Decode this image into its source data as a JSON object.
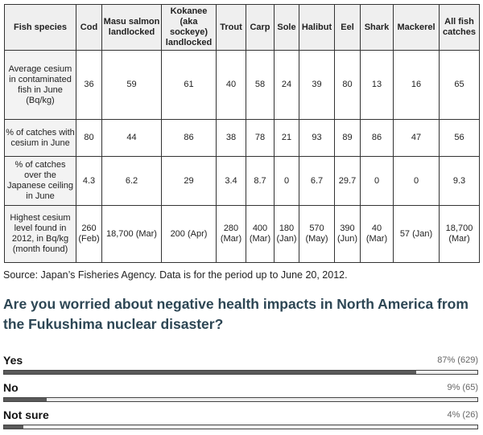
{
  "table": {
    "headers": [
      "Fish species",
      "Cod",
      "Masu salmon landlocked",
      "Kokanee (aka sockeye) landlocked",
      "Trout",
      "Carp",
      "Sole",
      "Halibut",
      "Eel",
      "Shark",
      "Mackerel",
      "All fish catches"
    ],
    "rows": [
      {
        "label": "Average cesium in contaminated fish in June (Bq/kg)",
        "cells": [
          "36",
          "59",
          "61",
          "40",
          "58",
          "24",
          "39",
          "80",
          "13",
          "16",
          "65"
        ]
      },
      {
        "label": "% of catches with cesium in June",
        "cells": [
          "80",
          "44",
          "86",
          "38",
          "78",
          "21",
          "93",
          "89",
          "86",
          "47",
          "56"
        ]
      },
      {
        "label": "% of catches over the Japanese ceiling in June",
        "cells": [
          "4.3",
          "6.2",
          "29",
          "3.4",
          "8.7",
          "0",
          "6.7",
          "29.7",
          "0",
          "0",
          "9.3"
        ]
      },
      {
        "label": "Highest cesium level found in 2012, in Bq/kg (month found)",
        "cells": [
          "260 (Feb)",
          "18,700 (Mar)",
          "200 (Apr)",
          "280 (Mar)",
          "400 (Mar)",
          "180 (Jan)",
          "570 (May)",
          "390 (Jun)",
          "40 (Mar)",
          "57 (Jan)",
          "18,700 (Mar)"
        ]
      }
    ]
  },
  "source": "Source: Japan’s Fisheries Agency. Data is for the period up to June 20, 2012.",
  "poll": {
    "question": "Are you worried about negative health impacts in North America from the Fukushima nuclear disaster?",
    "options": [
      {
        "label": "Yes",
        "result": "87% (629)",
        "percent": 87
      },
      {
        "label": "No",
        "result": "9% (65)",
        "percent": 9
      },
      {
        "label": "Not sure",
        "result": "4% (26)",
        "percent": 4
      }
    ]
  }
}
